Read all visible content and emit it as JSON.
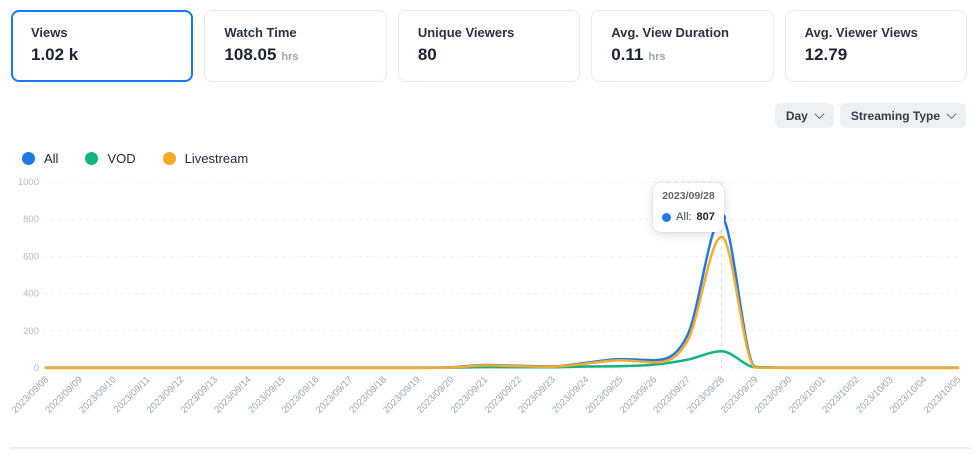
{
  "cards": [
    {
      "label": "Views",
      "value": "1.02 k",
      "unit": "",
      "selected": true
    },
    {
      "label": "Watch Time",
      "value": "108.05",
      "unit": "hrs",
      "selected": false
    },
    {
      "label": "Unique Viewers",
      "value": "80",
      "unit": "",
      "selected": false
    },
    {
      "label": "Avg. View Duration",
      "value": "0.11",
      "unit": "hrs",
      "selected": false
    },
    {
      "label": "Avg. Viewer Views",
      "value": "12.79",
      "unit": "",
      "selected": false
    }
  ],
  "filters": [
    {
      "label": "Day"
    },
    {
      "label": "Streaming Type"
    }
  ],
  "tooltip": {
    "date": "2023/09/28",
    "series_label": "All:",
    "value": "807"
  },
  "colors": {
    "accent": "#1677ff",
    "all": "#1f7ae8",
    "vod": "#14b182",
    "livestream": "#f7a927"
  },
  "chart_data": {
    "type": "line",
    "title": "",
    "xlabel": "",
    "ylabel": "",
    "ylim": [
      0,
      1000
    ],
    "yticks": [
      0,
      200,
      400,
      600,
      800,
      1000
    ],
    "grid": true,
    "legend_position": "top-left",
    "x": [
      "2023/09/08",
      "2023/09/09",
      "2023/09/10",
      "2023/09/11",
      "2023/09/12",
      "2023/09/13",
      "2023/09/14",
      "2023/09/15",
      "2023/09/16",
      "2023/09/17",
      "2023/09/18",
      "2023/09/19",
      "2023/09/20",
      "2023/09/21",
      "2023/09/22",
      "2023/09/23",
      "2023/09/24",
      "2023/09/25",
      "2023/09/26",
      "2023/09/27",
      "2023/09/28",
      "2023/09/29",
      "2023/09/30",
      "2023/10/01",
      "2023/10/02",
      "2023/10/03",
      "2023/10/04",
      "2023/10/05"
    ],
    "series": [
      {
        "name": "All",
        "color": "#1f7ae8",
        "values": [
          2,
          2,
          2,
          2,
          2,
          2,
          2,
          2,
          2,
          2,
          2,
          2,
          4,
          16,
          12,
          9,
          28,
          48,
          42,
          180,
          807,
          6,
          2,
          2,
          2,
          2,
          2,
          2
        ]
      },
      {
        "name": "VOD",
        "color": "#14b182",
        "values": [
          1,
          1,
          1,
          1,
          1,
          1,
          1,
          1,
          1,
          1,
          1,
          1,
          2,
          5,
          4,
          4,
          8,
          10,
          18,
          45,
          90,
          4,
          1,
          1,
          1,
          1,
          1,
          1
        ]
      },
      {
        "name": "Livestream",
        "color": "#f7a927",
        "values": [
          1,
          1,
          1,
          1,
          1,
          1,
          1,
          1,
          1,
          1,
          1,
          1,
          3,
          14,
          10,
          7,
          24,
          42,
          30,
          150,
          705,
          3,
          1,
          1,
          1,
          1,
          1,
          1
        ]
      }
    ],
    "highlight": {
      "x": "2023/09/28",
      "x_index": 20,
      "series": "All",
      "value": 807
    }
  }
}
